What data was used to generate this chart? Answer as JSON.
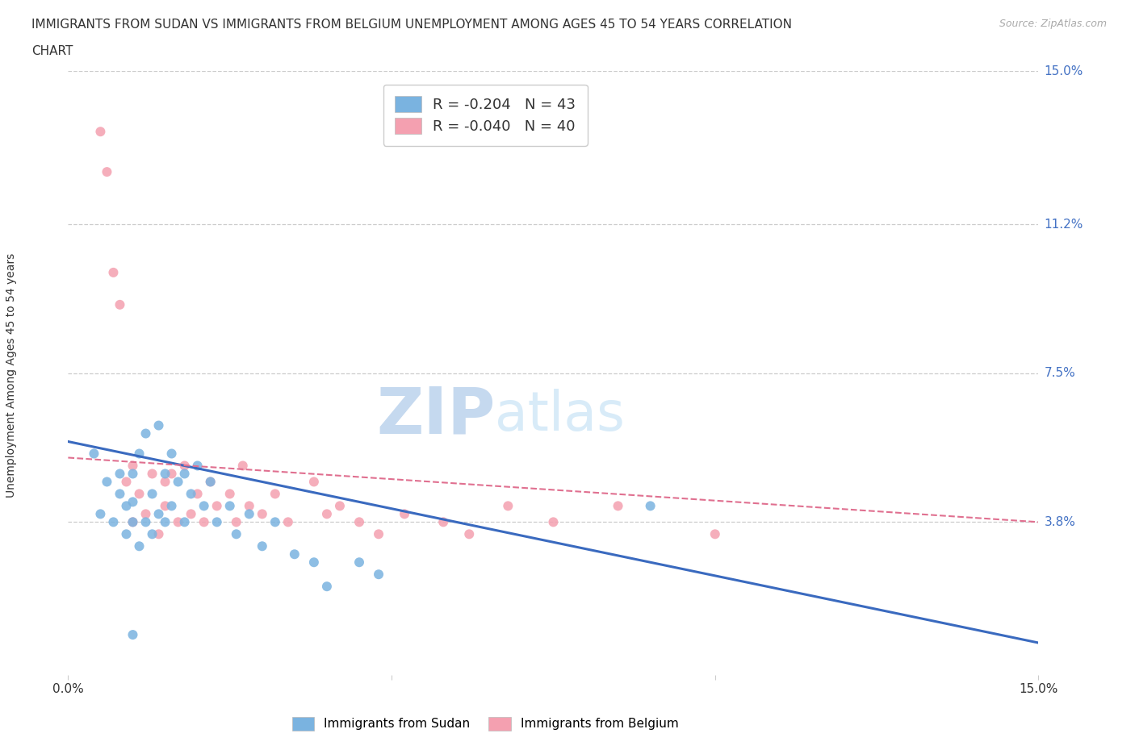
{
  "title_line1": "IMMIGRANTS FROM SUDAN VS IMMIGRANTS FROM BELGIUM UNEMPLOYMENT AMONG AGES 45 TO 54 YEARS CORRELATION",
  "title_line2": "CHART",
  "source_text": "Source: ZipAtlas.com",
  "ylabel": "Unemployment Among Ages 45 to 54 years",
  "xlim": [
    0.0,
    0.15
  ],
  "ylim": [
    0.0,
    0.15
  ],
  "ytick_labels_right": [
    "15.0%",
    "11.2%",
    "7.5%",
    "3.8%"
  ],
  "ytick_vals_right": [
    0.15,
    0.112,
    0.075,
    0.038
  ],
  "grid_color": "#cccccc",
  "background_color": "#ffffff",
  "sudan_color": "#7ab3e0",
  "belgium_color": "#f4a0b0",
  "sudan_line_color": "#3a6abf",
  "belgium_line_color": "#e07090",
  "legend_sudan_R": "-0.204",
  "legend_sudan_N": "43",
  "legend_belgium_R": "-0.040",
  "legend_belgium_N": "40",
  "sudan_scatter_x": [
    0.004,
    0.005,
    0.006,
    0.007,
    0.008,
    0.008,
    0.009,
    0.009,
    0.01,
    0.01,
    0.01,
    0.011,
    0.011,
    0.012,
    0.012,
    0.013,
    0.013,
    0.014,
    0.014,
    0.015,
    0.015,
    0.016,
    0.016,
    0.017,
    0.018,
    0.018,
    0.019,
    0.02,
    0.021,
    0.022,
    0.023,
    0.025,
    0.026,
    0.028,
    0.03,
    0.032,
    0.035,
    0.038,
    0.04,
    0.045,
    0.048,
    0.09,
    0.01
  ],
  "sudan_scatter_y": [
    0.055,
    0.04,
    0.048,
    0.038,
    0.045,
    0.05,
    0.042,
    0.035,
    0.05,
    0.043,
    0.038,
    0.055,
    0.032,
    0.06,
    0.038,
    0.045,
    0.035,
    0.062,
    0.04,
    0.05,
    0.038,
    0.055,
    0.042,
    0.048,
    0.05,
    0.038,
    0.045,
    0.052,
    0.042,
    0.048,
    0.038,
    0.042,
    0.035,
    0.04,
    0.032,
    0.038,
    0.03,
    0.028,
    0.022,
    0.028,
    0.025,
    0.042,
    0.01
  ],
  "belgium_scatter_x": [
    0.005,
    0.006,
    0.007,
    0.008,
    0.009,
    0.01,
    0.01,
    0.011,
    0.012,
    0.013,
    0.014,
    0.015,
    0.015,
    0.016,
    0.017,
    0.018,
    0.019,
    0.02,
    0.021,
    0.022,
    0.023,
    0.025,
    0.026,
    0.027,
    0.028,
    0.03,
    0.032,
    0.034,
    0.038,
    0.04,
    0.042,
    0.045,
    0.048,
    0.052,
    0.058,
    0.062,
    0.068,
    0.075,
    0.085,
    0.1
  ],
  "belgium_scatter_y": [
    0.135,
    0.125,
    0.1,
    0.092,
    0.048,
    0.052,
    0.038,
    0.045,
    0.04,
    0.05,
    0.035,
    0.042,
    0.048,
    0.05,
    0.038,
    0.052,
    0.04,
    0.045,
    0.038,
    0.048,
    0.042,
    0.045,
    0.038,
    0.052,
    0.042,
    0.04,
    0.045,
    0.038,
    0.048,
    0.04,
    0.042,
    0.038,
    0.035,
    0.04,
    0.038,
    0.035,
    0.042,
    0.038,
    0.042,
    0.035
  ],
  "watermark_zip": "ZIP",
  "watermark_atlas": "atlas",
  "watermark_color_dark": "#c5d9ef",
  "watermark_color_light": "#d8ebf8",
  "footer_legend_sudan": "Immigrants from Sudan",
  "footer_legend_belgium": "Immigrants from Belgium"
}
